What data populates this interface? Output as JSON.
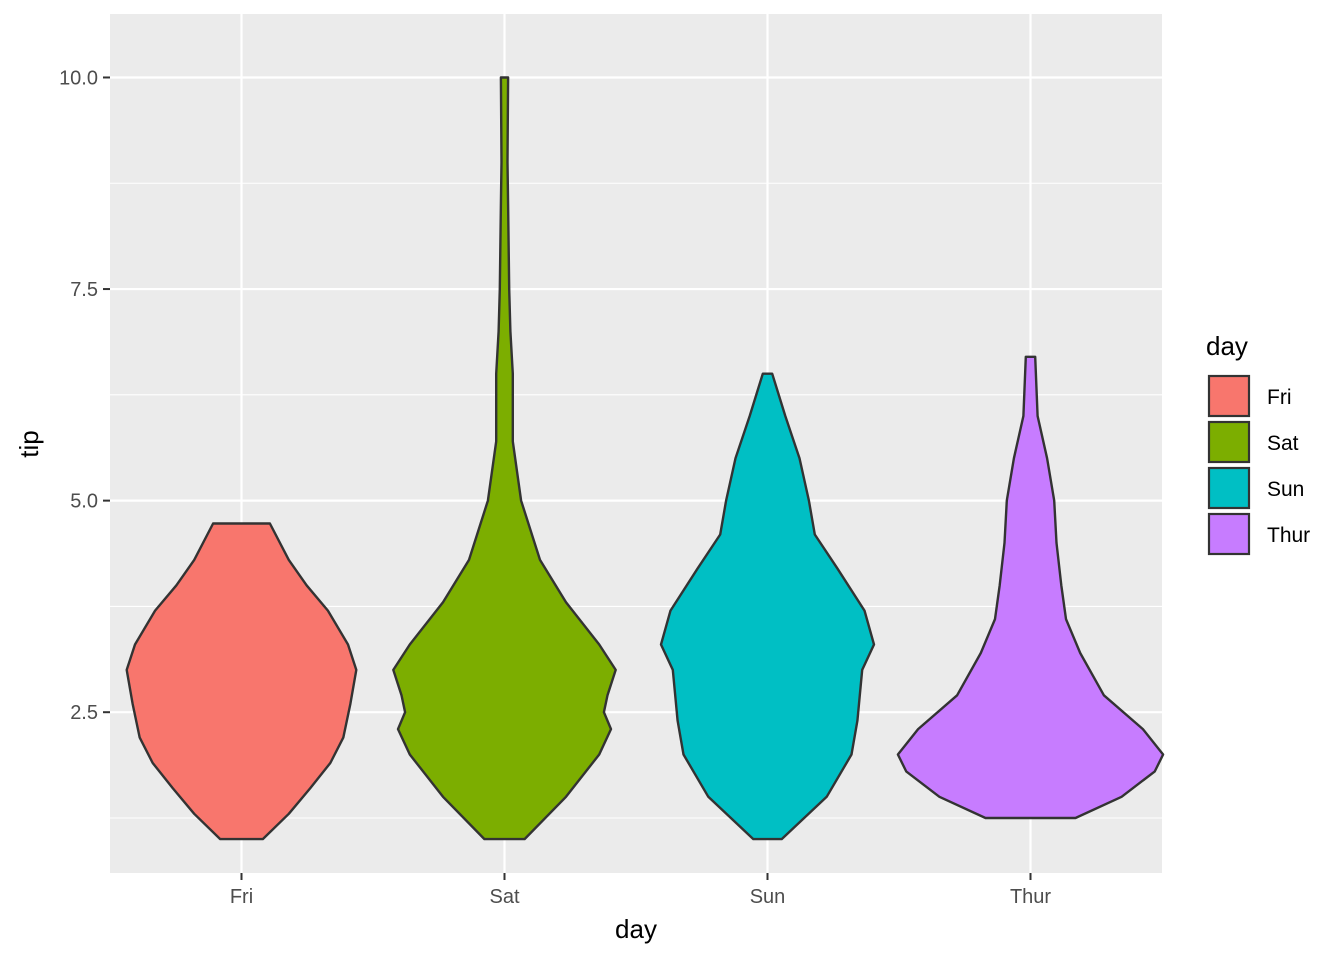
{
  "chart_data": {
    "type": "violin",
    "xlabel": "day",
    "ylabel": "tip",
    "categories": [
      "Fri",
      "Sat",
      "Sun",
      "Thur"
    ],
    "ylim": [
      0.6,
      10.75
    ],
    "yticks": [
      2.5,
      5.0,
      7.5,
      10.0
    ],
    "ytick_labels": [
      "2.5",
      "5.0",
      "7.5",
      "10.0"
    ],
    "grid": true,
    "legend": {
      "title": "day",
      "placement": "right",
      "entries": [
        "Fri",
        "Sat",
        "Sun",
        "Thur"
      ]
    },
    "series": [
      {
        "name": "Fri",
        "color": "#F8766D",
        "min": 1.0,
        "max": 4.73,
        "profile": [
          [
            1.0,
            0.18
          ],
          [
            1.3,
            0.4
          ],
          [
            1.6,
            0.58
          ],
          [
            1.9,
            0.75
          ],
          [
            2.2,
            0.86
          ],
          [
            2.6,
            0.92
          ],
          [
            3.0,
            0.97
          ],
          [
            3.3,
            0.9
          ],
          [
            3.7,
            0.73
          ],
          [
            4.0,
            0.55
          ],
          [
            4.3,
            0.4
          ],
          [
            4.73,
            0.24
          ]
        ]
      },
      {
        "name": "Sat",
        "color": "#7CAE00",
        "min": 1.0,
        "max": 10.0,
        "profile": [
          [
            1.0,
            0.17
          ],
          [
            1.5,
            0.52
          ],
          [
            2.0,
            0.8
          ],
          [
            2.3,
            0.9
          ],
          [
            2.5,
            0.84
          ],
          [
            2.7,
            0.87
          ],
          [
            3.0,
            0.94
          ],
          [
            3.3,
            0.8
          ],
          [
            3.8,
            0.52
          ],
          [
            4.3,
            0.3
          ],
          [
            5.0,
            0.14
          ],
          [
            5.7,
            0.07
          ],
          [
            6.5,
            0.07
          ],
          [
            7.0,
            0.05
          ],
          [
            7.5,
            0.04
          ],
          [
            8.5,
            0.03
          ],
          [
            9.0,
            0.025
          ],
          [
            10.0,
            0.03
          ]
        ]
      },
      {
        "name": "Sun",
        "color": "#00BFC4",
        "min": 1.0,
        "max": 6.5,
        "profile": [
          [
            1.0,
            0.12
          ],
          [
            1.5,
            0.5
          ],
          [
            2.0,
            0.71
          ],
          [
            2.4,
            0.76
          ],
          [
            2.7,
            0.78
          ],
          [
            3.0,
            0.8
          ],
          [
            3.3,
            0.9
          ],
          [
            3.7,
            0.82
          ],
          [
            4.2,
            0.59
          ],
          [
            4.6,
            0.4
          ],
          [
            5.0,
            0.35
          ],
          [
            5.5,
            0.27
          ],
          [
            6.0,
            0.15
          ],
          [
            6.5,
            0.04
          ]
        ]
      },
      {
        "name": "Thur",
        "color": "#C77CFF",
        "min": 1.25,
        "max": 6.7,
        "profile": [
          [
            1.25,
            0.38
          ],
          [
            1.5,
            0.77
          ],
          [
            1.8,
            1.05
          ],
          [
            2.0,
            1.12
          ],
          [
            2.3,
            0.95
          ],
          [
            2.7,
            0.62
          ],
          [
            3.2,
            0.42
          ],
          [
            3.6,
            0.3
          ],
          [
            4.0,
            0.26
          ],
          [
            4.5,
            0.22
          ],
          [
            5.0,
            0.2
          ],
          [
            5.5,
            0.14
          ],
          [
            6.0,
            0.06
          ],
          [
            6.7,
            0.04
          ]
        ]
      }
    ]
  }
}
